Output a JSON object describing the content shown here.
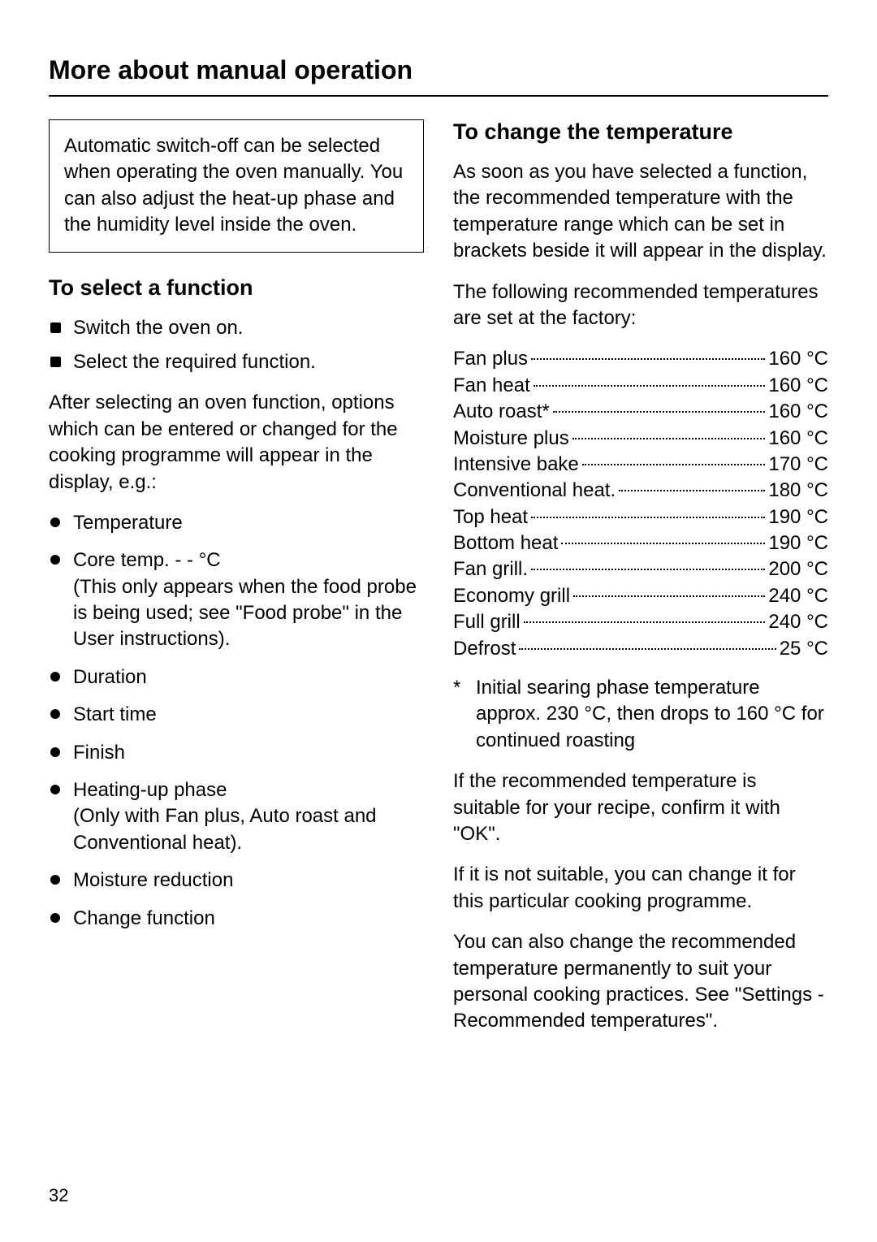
{
  "page": {
    "title": "More about manual operation",
    "number": "32"
  },
  "left": {
    "info_box": "Automatic switch-off can be selected when operating the oven manually. You can also adjust the heat-up phase and the humidity level inside the oven.",
    "section_heading": "To select a function",
    "steps": [
      "Switch the oven on.",
      "Select the required function."
    ],
    "intro": "After selecting an oven function, options which can be entered or changed for the cooking programme will appear in the display, e.g.:",
    "options": [
      {
        "label": "Temperature",
        "sub": ""
      },
      {
        "label": "Core temp. - - °C",
        "sub": "(This only appears when the food probe is being used; see \"Food probe\" in the User instructions)."
      },
      {
        "label": "Duration",
        "sub": ""
      },
      {
        "label": "Start time",
        "sub": ""
      },
      {
        "label": "Finish",
        "sub": ""
      },
      {
        "label": "Heating-up phase",
        "sub": "(Only with Fan plus, Auto roast and Conventional heat)."
      },
      {
        "label": "Moisture reduction",
        "sub": ""
      },
      {
        "label": "Change function",
        "sub": ""
      }
    ]
  },
  "right": {
    "section_heading": "To change the temperature",
    "p1": "As soon as you have selected a function, the recommended temperature with the temperature range which can be set in brackets beside it will appear in the display.",
    "p2": "The following recommended temperatures are set at the factory:",
    "temps": [
      {
        "label": "Fan plus",
        "value": "160 °C"
      },
      {
        "label": "Fan heat",
        "value": "160 °C"
      },
      {
        "label": "Auto roast*",
        "value": "160 °C"
      },
      {
        "label": "Moisture plus",
        "value": "160 °C"
      },
      {
        "label": "Intensive bake",
        "value": "170 °C"
      },
      {
        "label": "Conventional heat.",
        "value": "180 °C"
      },
      {
        "label": "Top heat",
        "value": "190 °C"
      },
      {
        "label": "Bottom heat",
        "value": "190 °C"
      },
      {
        "label": "Fan grill.",
        "value": "200 °C"
      },
      {
        "label": "Economy grill",
        "value": "240 °C"
      },
      {
        "label": "Full grill",
        "value": "240 °C"
      },
      {
        "label": "Defrost",
        "value": "25 °C"
      }
    ],
    "footnote_mark": "*",
    "footnote": "Initial searing phase temperature approx. 230 °C, then drops to 160 °C for continued roasting",
    "p3": "If the recommended temperature is suitable for your recipe, confirm it with \"OK\".",
    "p4": "If it is not suitable, you can change it for this particular cooking programme.",
    "p5": "You can also change the recommended temperature permanently to suit your personal cooking practices. See \"Settings - Recommended temperatures\"."
  }
}
